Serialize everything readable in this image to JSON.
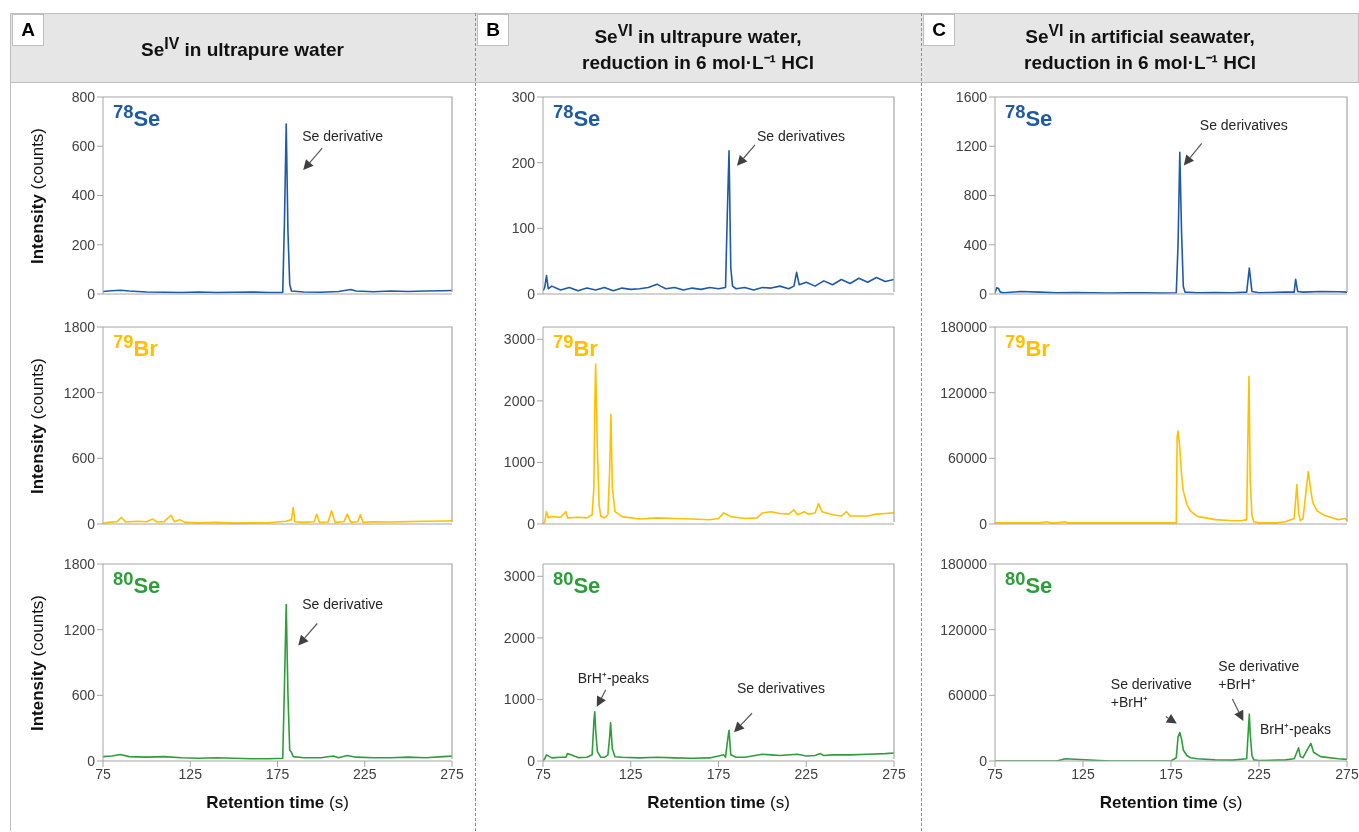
{
  "chart_data": [
    {
      "type": "line",
      "title": "Se$^{IV}$ in ultrapure water",
      "ylabel": "Intensity (counts)",
      "xlim": [
        75,
        275
      ],
      "ylim": [
        0,
        800
      ],
      "yticks": [
        0,
        200,
        400,
        600,
        800
      ],
      "tick_labels": "y",
      "annotations": [
        "A",
        {
          "text": "Se derivative",
          "x": 180,
          "y": 690
        }
      ],
      "series": [
        {
          "name": "$^{78}$Se",
          "color": "#1f5aa6",
          "x": [
            75,
            80,
            85,
            90,
            100,
            110,
            120,
            130,
            140,
            150,
            160,
            170,
            178,
            179,
            180,
            181,
            182,
            183,
            190,
            200,
            210,
            217,
            220,
            230,
            240,
            250,
            260,
            270,
            275
          ],
          "values": [
            10,
            13,
            15,
            12,
            8,
            7,
            6,
            8,
            6,
            7,
            8,
            6,
            6,
            300,
            690,
            250,
            40,
            12,
            8,
            7,
            10,
            18,
            12,
            9,
            12,
            10,
            12,
            13,
            14
          ]
        }
      ]
    },
    {
      "type": "line",
      "title": "Se$^{VI}$ in ultrapure water,\nreduction in 6 mol·L⁻¹ HCl",
      "xlim": [
        75,
        275
      ],
      "ylim": [
        0,
        300
      ],
      "yticks": [
        0,
        100,
        200,
        300
      ],
      "tick_labels": "y",
      "annotations": [
        "B",
        {
          "text": "Se derivatives",
          "x": 181,
          "y": 218
        }
      ],
      "series": [
        {
          "name": "$^{78}$Se",
          "color": "#1f5aa6",
          "x": [
            75,
            76,
            77,
            78,
            80,
            85,
            90,
            95,
            100,
            105,
            110,
            115,
            120,
            125,
            130,
            135,
            140,
            142,
            145,
            150,
            155,
            160,
            165,
            170,
            175,
            179,
            180,
            181,
            182,
            183,
            185,
            190,
            195,
            200,
            205,
            210,
            215,
            218,
            219.5,
            221,
            225,
            230,
            235,
            240,
            245,
            250,
            255,
            260,
            265,
            270,
            275
          ],
          "values": [
            5,
            10,
            28,
            8,
            12,
            6,
            10,
            5,
            9,
            6,
            10,
            5,
            9,
            7,
            8,
            10,
            15,
            12,
            8,
            10,
            6,
            9,
            7,
            10,
            8,
            10,
            120,
            218,
            40,
            12,
            8,
            10,
            6,
            10,
            9,
            12,
            8,
            12,
            33,
            14,
            18,
            12,
            20,
            14,
            22,
            16,
            24,
            18,
            25,
            19,
            22
          ]
        }
      ]
    },
    {
      "type": "line",
      "title": "Se$^{VI}$ in artificial seawater,\nreduction in 6 mol·L⁻¹ HCl",
      "xlim": [
        75,
        275
      ],
      "ylim": [
        0,
        1600
      ],
      "yticks": [
        0,
        400,
        800,
        1200,
        1600
      ],
      "tick_labels": "y",
      "annotations": [
        "C",
        {
          "text": "Se derivatives",
          "x": 180,
          "y": 1150
        }
      ],
      "series": [
        {
          "name": "$^{78}$Se",
          "color": "#1f5aa6",
          "x": [
            75,
            76,
            77,
            78,
            80,
            90,
            100,
            110,
            120,
            130,
            140,
            150,
            160,
            170,
            178,
            179,
            180,
            181,
            182,
            183,
            190,
            200,
            210,
            218,
            219.5,
            221,
            225,
            230,
            240,
            245,
            245.8,
            247,
            250,
            260,
            270,
            275
          ],
          "values": [
            10,
            50,
            45,
            15,
            10,
            20,
            15,
            10,
            12,
            10,
            8,
            10,
            10,
            8,
            10,
            400,
            1150,
            500,
            60,
            15,
            10,
            12,
            10,
            15,
            210,
            20,
            10,
            12,
            15,
            15,
            120,
            20,
            15,
            20,
            18,
            15
          ]
        }
      ]
    },
    {
      "type": "line",
      "ylabel": "Intensity (counts)",
      "xlim": [
        75,
        275
      ],
      "ylim": [
        0,
        1800
      ],
      "yticks": [
        0,
        600,
        1200,
        1800
      ],
      "tick_labels": "y",
      "series": [
        {
          "name": "$^{79}$Br",
          "color": "#ffc000",
          "x": [
            75,
            78,
            83,
            85.5,
            88,
            95,
            100,
            103.5,
            106,
            110,
            114,
            116,
            119,
            122,
            130,
            140,
            150,
            160,
            170,
            180,
            183,
            184,
            185,
            190,
            196,
            197.5,
            199,
            204,
            206,
            208,
            213,
            215,
            217,
            221,
            222.5,
            224,
            230,
            240,
            250,
            260,
            270,
            275
          ],
          "values": [
            5,
            15,
            20,
            60,
            18,
            25,
            20,
            45,
            18,
            22,
            80,
            20,
            40,
            15,
            10,
            15,
            8,
            10,
            12,
            25,
            40,
            150,
            20,
            15,
            20,
            90,
            15,
            18,
            120,
            15,
            20,
            90,
            15,
            20,
            85,
            15,
            20,
            18,
            22,
            25,
            28,
            30
          ]
        }
      ]
    },
    {
      "type": "line",
      "xlim": [
        75,
        275
      ],
      "ylim": [
        0,
        3200
      ],
      "yticks": [
        0,
        1000,
        2000,
        3000
      ],
      "tick_labels": "y",
      "series": [
        {
          "name": "$^{79}$Br",
          "color": "#ffc000",
          "x": [
            75,
            76,
            77,
            78,
            80,
            85,
            88,
            89,
            95,
            100,
            103,
            104,
            104.5,
            105,
            106,
            107,
            108,
            110,
            112,
            113,
            113.7,
            114.5,
            116,
            120,
            130,
            140,
            150,
            160,
            170,
            175,
            178,
            180,
            182,
            190,
            197,
            200,
            205,
            210,
            215,
            218,
            220,
            224,
            226,
            230,
            232,
            234,
            240,
            245,
            248,
            250,
            260,
            265,
            270,
            275
          ],
          "values": [
            0,
            30,
            200,
            100,
            120,
            110,
            200,
            100,
            110,
            100,
            150,
            600,
            1900,
            2600,
            1200,
            300,
            120,
            100,
            150,
            900,
            1780,
            600,
            200,
            120,
            80,
            100,
            90,
            80,
            70,
            90,
            180,
            150,
            120,
            90,
            100,
            180,
            200,
            170,
            160,
            230,
            150,
            200,
            160,
            180,
            330,
            200,
            150,
            130,
            200,
            130,
            130,
            160,
            170,
            180
          ]
        }
      ]
    },
    {
      "type": "line",
      "xlim": [
        75,
        275
      ],
      "ylim": [
        0,
        180000
      ],
      "yticks": [
        0,
        60000,
        120000,
        180000
      ],
      "tick_labels": "y",
      "series": [
        {
          "name": "$^{79}$Br",
          "color": "#ffc000",
          "x": [
            75,
            80,
            90,
            100,
            105,
            106,
            110,
            115,
            116,
            120,
            140,
            160,
            175,
            178,
            178.5,
            179,
            180,
            181,
            182,
            184,
            186,
            190,
            200,
            210,
            215,
            218,
            218.5,
            219.3,
            220,
            221,
            222,
            225,
            235,
            240,
            245,
            246.5,
            247.5,
            248.5,
            250,
            253,
            254.5,
            255.5,
            258,
            262,
            270,
            274,
            275
          ],
          "values": [
            1000,
            1000,
            1000,
            1000,
            2000,
            1000,
            1000,
            2000,
            1000,
            1000,
            1000,
            1000,
            1000,
            1000,
            80000,
            85000,
            70000,
            45000,
            30000,
            18000,
            12000,
            7000,
            4000,
            3000,
            3000,
            4000,
            60000,
            135000,
            40000,
            8000,
            2000,
            1000,
            1000,
            2000,
            5000,
            36000,
            10000,
            3000,
            5000,
            48000,
            30000,
            20000,
            12000,
            8000,
            4000,
            5000,
            3000
          ]
        }
      ]
    },
    {
      "type": "line",
      "ylabel": "Intensity (counts)",
      "xlabel": "Retention time (s)",
      "xlim": [
        75,
        275
      ],
      "xticks": [
        75,
        125,
        175,
        225,
        275
      ],
      "ylim": [
        0,
        1800
      ],
      "yticks": [
        0,
        600,
        1200,
        1800
      ],
      "annotations": [
        {
          "text": "Se derivative",
          "x": 180,
          "y": 1430
        }
      ],
      "series": [
        {
          "name": "$^{80}$Se",
          "color": "#2e9e3a",
          "x": [
            75,
            80,
            85,
            90,
            100,
            110,
            120,
            130,
            140,
            150,
            160,
            170,
            178,
            179,
            180,
            181,
            182,
            183,
            184,
            190,
            200,
            207,
            210,
            215,
            220,
            230,
            240,
            250,
            260,
            270,
            275
          ],
          "values": [
            40,
            45,
            60,
            40,
            35,
            40,
            30,
            25,
            30,
            25,
            20,
            20,
            25,
            700,
            1430,
            600,
            100,
            80,
            40,
            30,
            30,
            45,
            30,
            50,
            35,
            30,
            30,
            35,
            30,
            40,
            45
          ]
        }
      ]
    },
    {
      "type": "line",
      "xlabel": "Retention time (s)",
      "xlim": [
        75,
        275
      ],
      "xticks": [
        75,
        125,
        175,
        225,
        275
      ],
      "ylim": [
        0,
        3200
      ],
      "yticks": [
        0,
        1000,
        2000,
        3000
      ],
      "annotations": [
        {
          "text": "BrH⁺-peaks",
          "x": 104.5,
          "y": 800
        },
        {
          "text": "Se derivatives",
          "x": 181,
          "y": 500
        }
      ],
      "series": [
        {
          "name": "$^{80}$Se",
          "color": "#2e9e3a",
          "x": [
            75,
            76,
            77,
            80,
            85,
            88,
            89,
            95,
            100,
            103,
            104,
            104.5,
            105,
            106,
            108,
            110,
            112,
            113,
            113.5,
            114.5,
            116,
            120,
            130,
            140,
            150,
            160,
            170,
            175,
            178,
            179,
            180,
            181,
            182,
            185,
            190,
            200,
            205,
            210,
            220,
            225,
            230,
            233,
            235,
            240,
            250,
            260,
            270,
            275
          ],
          "values": [
            0,
            40,
            100,
            50,
            60,
            60,
            120,
            55,
            60,
            100,
            650,
            800,
            500,
            150,
            60,
            60,
            100,
            400,
            620,
            200,
            70,
            60,
            50,
            60,
            50,
            45,
            50,
            80,
            100,
            60,
            300,
            500,
            100,
            60,
            60,
            110,
            100,
            90,
            110,
            80,
            90,
            120,
            90,
            100,
            100,
            110,
            120,
            130
          ]
        }
      ]
    },
    {
      "type": "line",
      "xlabel": "Retention time (s)",
      "xlim": [
        75,
        275
      ],
      "xticks": [
        75,
        125,
        175,
        225,
        275
      ],
      "ylim": [
        0,
        180000
      ],
      "yticks": [
        0,
        60000,
        120000,
        180000
      ],
      "annotations": [
        {
          "text": "Se derivative\n+BrH⁺",
          "x": 180,
          "y": 26000
        },
        {
          "text": "Se derivative\n+BrH⁺",
          "x": 219.5,
          "y": 43000
        },
        {
          "text": "BrH⁺-peaks",
          "x": 254.5,
          "y": 16000
        }
      ],
      "series": [
        {
          "name": "$^{80}$Se",
          "color": "#2e9e3a",
          "x": [
            75,
            100,
            110,
            115,
            140,
            175,
            178,
            179,
            180,
            181,
            182,
            184,
            186,
            190,
            200,
            210,
            218,
            219,
            219.5,
            220,
            221,
            222,
            225,
            240,
            245,
            246.5,
            247.5,
            248.5,
            250,
            253,
            254.5,
            256,
            260,
            270,
            275
          ],
          "values": [
            0,
            0,
            0,
            2000,
            0,
            0,
            3000,
            22000,
            26000,
            20000,
            10000,
            5000,
            3000,
            2000,
            1000,
            800,
            2000,
            30000,
            43000,
            25000,
            5000,
            1000,
            500,
            1000,
            2000,
            8000,
            12000,
            4000,
            3000,
            12000,
            16000,
            8000,
            4000,
            2000,
            1500
          ]
        }
      ]
    }
  ]
}
